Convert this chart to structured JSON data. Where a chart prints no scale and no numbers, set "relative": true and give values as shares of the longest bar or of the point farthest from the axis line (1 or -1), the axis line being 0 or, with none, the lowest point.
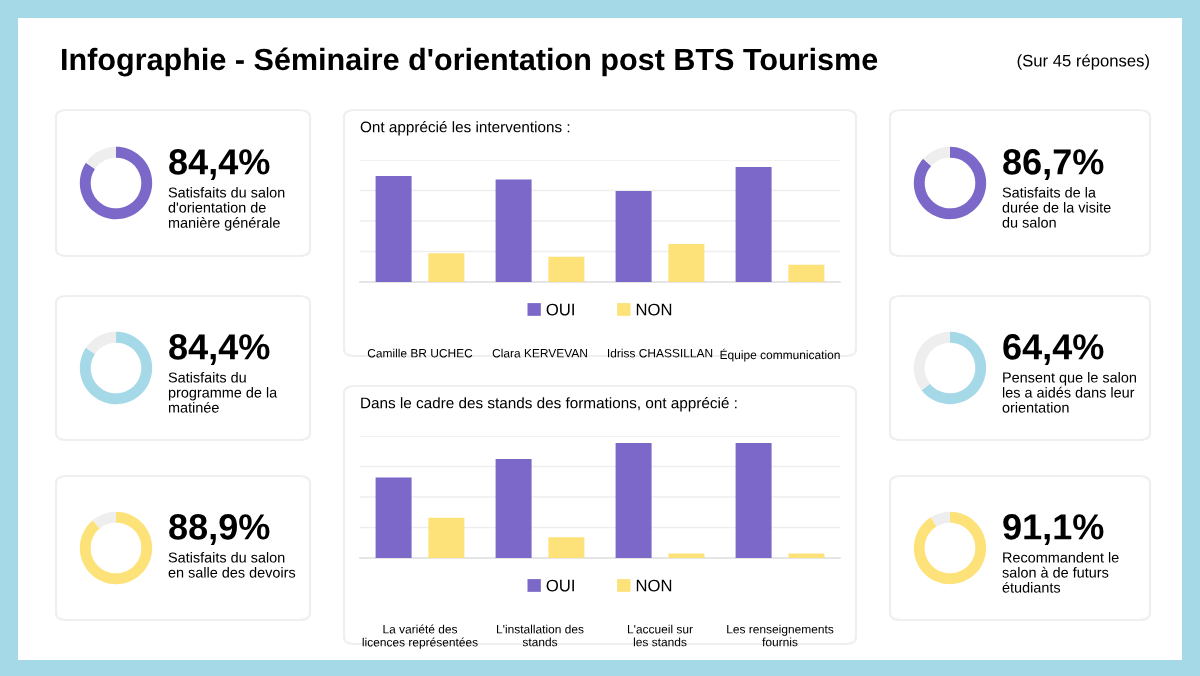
{
  "chart_data": [
    {
      "type": "other",
      "title": "Infographie - Séminaire d'orientation post BTS Tourisme",
      "annotations": [
        "(Sur 45 réponses)"
      ]
    },
    {
      "type": "donut",
      "title": "84,4%",
      "subtitle": "Satisfaits du salon\nd'orientation de\nmanière générale",
      "categories": [
        null,
        null
      ],
      "values": [
        84.4,
        15.6
      ],
      "colors": [
        "#7b68c9",
        "#eeeeee"
      ]
    },
    {
      "type": "donut",
      "title": "84,4%",
      "subtitle": "Satisfaits du\nprogramme de la\nmatinée",
      "categories": [
        null,
        null
      ],
      "values": [
        84.4,
        15.6
      ],
      "colors": [
        "#a6d9e7",
        "#eeeeee"
      ]
    },
    {
      "type": "donut",
      "title": "88,9%",
      "subtitle": "Satisfaits du salon\nen salle des devoirs",
      "categories": [
        null,
        null
      ],
      "values": [
        88.9,
        11.1
      ],
      "colors": [
        "#fde27a",
        "#eeeeee"
      ]
    },
    {
      "type": "bar",
      "title": "Ont apprécié les interventions :",
      "relative": true,
      "grid": "y",
      "legend": "bottom",
      "categories": [
        "Camille BR UCHEC",
        "Clara KERVEVAN",
        "Idriss CHASSILLAN",
        "Équipe communication"
      ],
      "series": [
        {
          "name": "OUI",
          "color": "#7b68c9",
          "values": [
            0.92,
            0.89,
            0.79,
            1
          ]
        },
        {
          "name": "NON",
          "color": "#fde27a",
          "values": [
            0.25,
            0.22,
            0.33,
            0.15
          ]
        }
      ]
    },
    {
      "type": "bar",
      "title": "Dans le cadre des stands des formations, ont apprécié :",
      "relative": true,
      "grid": "y",
      "legend": "bottom",
      "categories": [
        "La variété des\nlicences représentées",
        "L'installation des\nstands",
        "L'accueil sur\nles stands",
        "Les renseignements\nfournis"
      ],
      "series": [
        {
          "name": "OUI",
          "color": "#7b68c9",
          "values": [
            0.7,
            0.86,
            1,
            1
          ]
        },
        {
          "name": "NON",
          "color": "#fde27a",
          "values": [
            0.35,
            0.18,
            0.04,
            0.04
          ]
        }
      ]
    },
    {
      "type": "donut",
      "title": "86,7%",
      "subtitle": "Satisfaits de la\ndurée de la visite\ndu salon",
      "categories": [
        null,
        null
      ],
      "values": [
        86.7,
        13.3
      ],
      "colors": [
        "#7b68c9",
        "#eeeeee"
      ]
    },
    {
      "type": "donut",
      "title": "64,4%",
      "subtitle": "Pensent que le salon\nles a aidés dans leur\norientation",
      "categories": [
        null,
        null
      ],
      "values": [
        64.4,
        35.6
      ],
      "colors": [
        "#a6d9e7",
        "#eeeeee"
      ]
    },
    {
      "type": "donut",
      "title": "91,1%",
      "subtitle": "Recommandent le\nsalon à de futurs\nétudiants",
      "categories": [
        null,
        null
      ],
      "values": [
        91.1,
        8.9
      ],
      "colors": [
        "#fde27a",
        "#eeeeee"
      ]
    }
  ]
}
